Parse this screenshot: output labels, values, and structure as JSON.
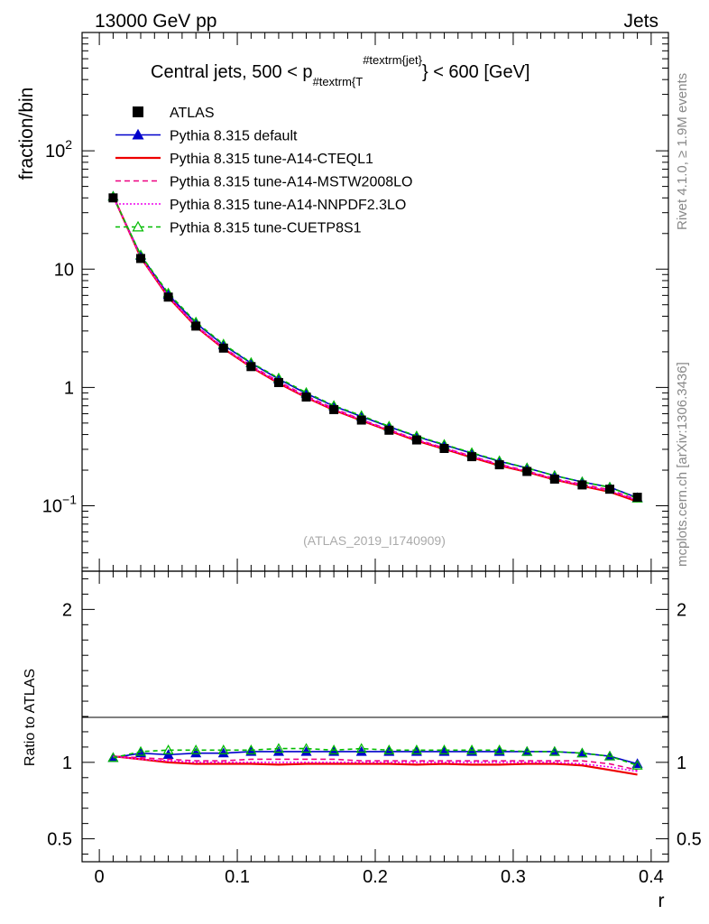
{
  "header": {
    "left": "13000 GeV pp",
    "right": "Jets"
  },
  "side_labels": {
    "rivet": "Rivet 4.1.0, ≥ 1.9M events",
    "mcplots": "mcplots.cern.ch [arXiv:1306.3436]"
  },
  "watermark": "(ATLAS_2019_I1740909)",
  "chart_data": {
    "type": "line",
    "title": {
      "pre": "Central jets, 500 < p",
      "sub": "#textrm{T",
      "sup": "#textrm{jet}",
      "brace": "}",
      "post": " < 600 [GeV]"
    },
    "xlabel": "r",
    "ylabel": "fraction/bin",
    "ratio_ylabel": "Ratio to ATLAS",
    "xlim": [
      -0.0125,
      0.4125
    ],
    "ylim": [
      0.028,
      1000
    ],
    "ratio_ylim": [
      0.35,
      2.25
    ],
    "xticks": [
      "0",
      "0.1",
      "0.2",
      "0.3",
      "0.4"
    ],
    "yticks": [
      {
        "v": 0.1,
        "base": "10",
        "exp": "−1"
      },
      {
        "v": 1,
        "base": "1",
        "exp": ""
      },
      {
        "v": 10,
        "base": "10",
        "exp": ""
      },
      {
        "v": 100,
        "base": "10",
        "exp": "2"
      }
    ],
    "ratio_yticks": [
      "0.5",
      "1",
      "2"
    ],
    "x": [
      0.01,
      0.03,
      0.05,
      0.07,
      0.09,
      0.11,
      0.13,
      0.15,
      0.17,
      0.19,
      0.21,
      0.23,
      0.25,
      0.27,
      0.29,
      0.31,
      0.33,
      0.35,
      0.37,
      0.39
    ],
    "data": {
      "name": "ATLAS",
      "values": [
        40,
        12.3,
        5.8,
        3.3,
        2.15,
        1.5,
        1.1,
        0.83,
        0.65,
        0.53,
        0.435,
        0.36,
        0.305,
        0.26,
        0.222,
        0.195,
        0.168,
        0.15,
        0.138,
        0.118
      ]
    },
    "series": [
      {
        "name": "Pythia 8.315 default",
        "color": "#0000cc",
        "dash": "",
        "marker": "triangle-filled",
        "ratio": [
          1.03,
          1.06,
          1.05,
          1.06,
          1.06,
          1.07,
          1.07,
          1.07,
          1.07,
          1.07,
          1.07,
          1.07,
          1.07,
          1.07,
          1.07,
          1.07,
          1.07,
          1.06,
          1.04,
          0.99
        ]
      },
      {
        "name": "Pythia 8.315 tune-A14-CTEQL1",
        "color": "#ee0000",
        "dash": "",
        "marker": "none",
        "ratio": [
          1.04,
          1.02,
          1.0,
          0.99,
          0.99,
          0.99,
          0.985,
          0.99,
          0.99,
          0.99,
          0.99,
          0.985,
          0.99,
          0.985,
          0.985,
          0.99,
          0.99,
          0.98,
          0.95,
          0.92
        ]
      },
      {
        "name": "Pythia 8.315 tune-A14-MSTW2008LO",
        "color": "#ee0080",
        "dash": "6,4",
        "marker": "none",
        "ratio": [
          1.04,
          1.03,
          1.02,
          1.01,
          1.01,
          1.02,
          1.02,
          1.02,
          1.02,
          1.01,
          1.01,
          1.01,
          1.01,
          1.01,
          1.01,
          1.01,
          1.01,
          1.01,
          0.99,
          0.95
        ]
      },
      {
        "name": "Pythia 8.315 tune-A14-NNPDF2.3LO",
        "color": "#ee00ee",
        "dash": "2,2",
        "marker": "none",
        "ratio": [
          1.04,
          1.02,
          1.01,
          1.0,
          1.0,
          1.0,
          1.0,
          1.0,
          1.0,
          1.0,
          1.0,
          1.0,
          1.0,
          1.0,
          1.0,
          1.0,
          1.0,
          0.99,
          0.97,
          0.94
        ]
      },
      {
        "name": "Pythia 8.315 tune-CUETP8S1",
        "color": "#00bb00",
        "dash": "5,4",
        "marker": "triangle-open",
        "ratio": [
          1.03,
          1.07,
          1.08,
          1.08,
          1.08,
          1.08,
          1.09,
          1.09,
          1.08,
          1.09,
          1.08,
          1.08,
          1.08,
          1.08,
          1.08,
          1.07,
          1.07,
          1.06,
          1.04,
          0.98
        ]
      }
    ]
  }
}
